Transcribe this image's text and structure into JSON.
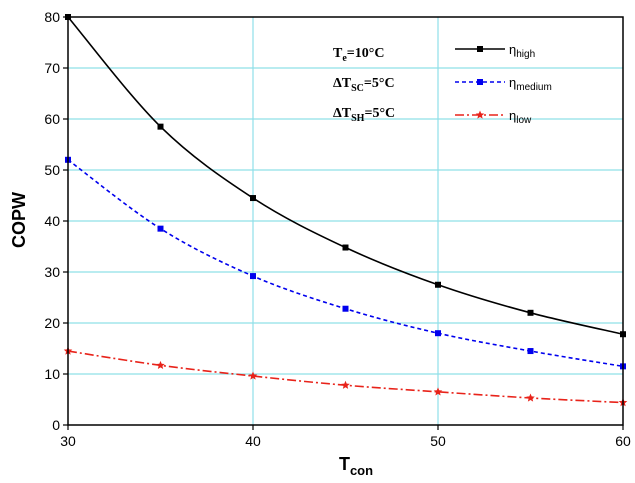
{
  "chart_data": {
    "type": "line",
    "xlabel": "T",
    "xlabel_sub": "con",
    "ylabel": "COPW",
    "xlim": [
      30,
      60
    ],
    "ylim": [
      0,
      80
    ],
    "xticks": [
      30,
      40,
      50,
      60
    ],
    "yticks": [
      0,
      10,
      20,
      30,
      40,
      50,
      60,
      70,
      80
    ],
    "x_gridlines": [
      40,
      50
    ],
    "y_gridlines": [
      10,
      20,
      30,
      40,
      50,
      60,
      70
    ],
    "grid": true,
    "legend_position": "top-right",
    "annotations": [
      {
        "main": "T",
        "sub": "e",
        "tail": "=10°C"
      },
      {
        "main": "ΔT",
        "sub": "SC",
        "tail": "=5°C"
      },
      {
        "main": "ΔT",
        "sub": "SH",
        "tail": "=5°C"
      }
    ],
    "series": [
      {
        "symbol": "η",
        "sub": "high",
        "color": "#000000",
        "marker": "square",
        "dash": "",
        "x": [
          30,
          35,
          40,
          45,
          50,
          55,
          60
        ],
        "values": [
          80,
          58.5,
          44.5,
          34.8,
          27.5,
          22,
          17.8
        ]
      },
      {
        "symbol": "η",
        "sub": "medium",
        "color": "#0000ee",
        "marker": "square",
        "dash": "4,3",
        "x": [
          30,
          35,
          40,
          45,
          50,
          55,
          60
        ],
        "values": [
          52,
          38.5,
          29.2,
          22.8,
          18,
          14.5,
          11.5
        ]
      },
      {
        "symbol": "η",
        "sub": "low",
        "color": "#e8231a",
        "marker": "star",
        "dash": "9,3,2,3",
        "x": [
          30,
          35,
          40,
          45,
          50,
          55,
          60
        ],
        "values": [
          14.5,
          11.7,
          9.6,
          7.8,
          6.5,
          5.3,
          4.4
        ]
      }
    ]
  }
}
